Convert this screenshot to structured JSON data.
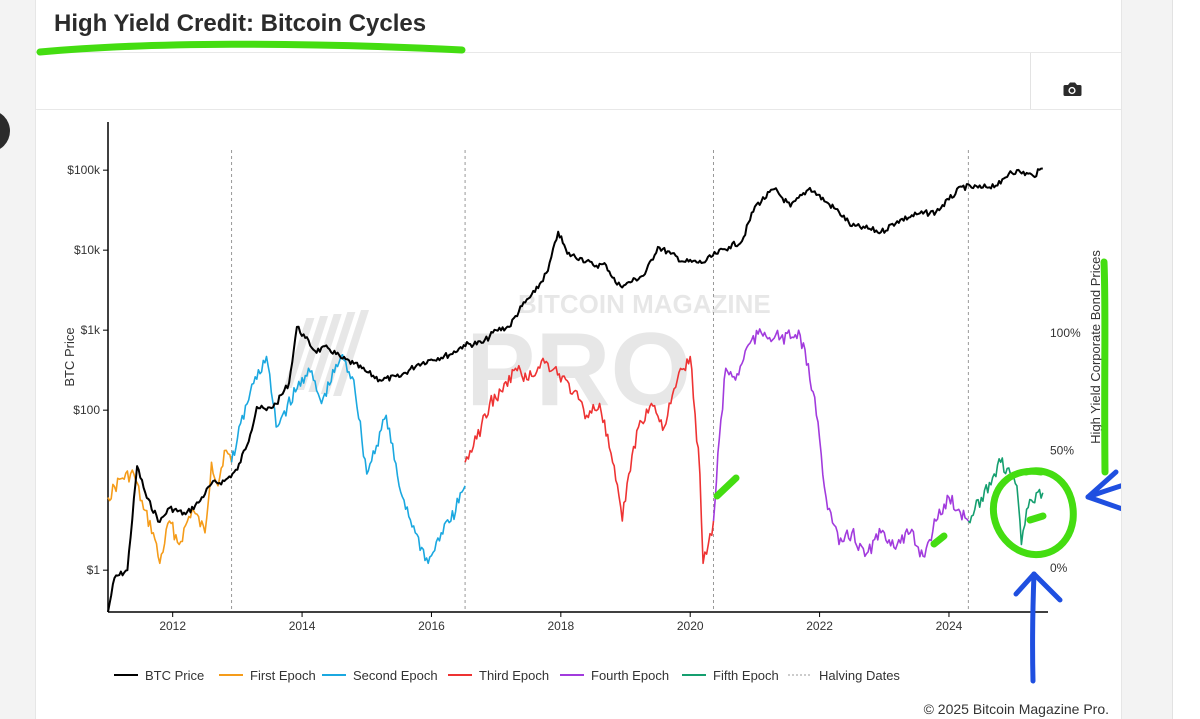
{
  "header": {
    "title": "High Yield Credit: Bitcoin Cycles"
  },
  "toolbar": {
    "camera_icon": "camera-icon"
  },
  "copyright": "© 2025 Bitcoin Magazine Pro.",
  "watermark": {
    "top": "BITCOIN MAGAZINE",
    "main": "PRO"
  },
  "colors": {
    "btc": "#000000",
    "first": "#f59c1a",
    "second": "#1ba8e0",
    "third": "#ee3333",
    "fourth": "#a23bdd",
    "fifth": "#159f6f",
    "halving": "#999999",
    "annotation_green": "#44dd11",
    "annotation_blue": "#1f4fe0"
  },
  "chart_data": {
    "type": "line",
    "x_range": [
      2011.0,
      2025.5
    ],
    "x_ticks": [
      2012,
      2014,
      2016,
      2018,
      2020,
      2022,
      2024
    ],
    "x_tick_labels": [
      "2012",
      "2014",
      "2016",
      "2018",
      "2020",
      "2022",
      "2024"
    ],
    "y_left": {
      "label": "BTC Price",
      "scale": "log",
      "range": [
        0.3,
        400000
      ],
      "ticks": [
        1,
        100,
        1000,
        10000,
        100000
      ],
      "tick_labels": [
        "$1",
        "$100",
        "$1k",
        "$10k",
        "$100k"
      ]
    },
    "y_right": {
      "label": "High Yield Corporate Bond Prices",
      "range": [
        0,
        120
      ],
      "ticks": [
        0,
        50,
        100
      ],
      "tick_labels": [
        "0%",
        "50%",
        "100%"
      ]
    },
    "halving_dates": [
      2012.91,
      2016.52,
      2020.36,
      2024.3
    ],
    "btc_series": {
      "name": "BTC Price",
      "x": [
        2011.0,
        2011.1,
        2011.3,
        2011.45,
        2011.6,
        2011.8,
        2011.95,
        2012.2,
        2012.4,
        2012.6,
        2012.8,
        2013.0,
        2013.2,
        2013.3,
        2013.45,
        2013.6,
        2013.8,
        2013.92,
        2014.05,
        2014.2,
        2014.4,
        2014.6,
        2014.8,
        2015.0,
        2015.2,
        2015.5,
        2015.8,
        2016.0,
        2016.3,
        2016.5,
        2016.8,
        2017.0,
        2017.2,
        2017.4,
        2017.6,
        2017.8,
        2017.96,
        2018.1,
        2018.3,
        2018.5,
        2018.7,
        2018.87,
        2019.0,
        2019.3,
        2019.5,
        2019.7,
        2019.9,
        2020.2,
        2020.4,
        2020.6,
        2020.8,
        2021.0,
        2021.3,
        2021.55,
        2021.85,
        2022.1,
        2022.3,
        2022.5,
        2022.7,
        2022.95,
        2023.2,
        2023.5,
        2023.8,
        2024.0,
        2024.2,
        2024.5,
        2024.8,
        2024.95,
        2025.1,
        2025.3,
        2025.45
      ],
      "values": [
        0.3,
        0.8,
        1.0,
        20,
        8,
        4,
        6,
        5,
        7,
        12,
        13,
        18,
        50,
        110,
        100,
        120,
        220,
        1100,
        800,
        550,
        600,
        450,
        380,
        300,
        240,
        260,
        380,
        430,
        500,
        650,
        700,
        1000,
        1100,
        2000,
        3000,
        5500,
        17000,
        9000,
        8000,
        6500,
        6500,
        3700,
        3700,
        5000,
        11000,
        9000,
        7200,
        7000,
        9000,
        11000,
        13000,
        35000,
        58000,
        35000,
        60000,
        40000,
        30000,
        20000,
        19000,
        16800,
        23000,
        28000,
        30000,
        43000,
        62000,
        60000,
        68000,
        97000,
        95000,
        85000,
        105000
      ]
    },
    "hy_series": [
      {
        "name": "First Epoch",
        "x": [
          2011.0,
          2011.2,
          2011.4,
          2011.55,
          2011.7,
          2011.8,
          2011.95,
          2012.1,
          2012.3,
          2012.5,
          2012.6,
          2012.7,
          2012.8,
          2012.91
        ],
        "values": [
          30,
          38,
          40,
          25,
          15,
          2,
          20,
          10,
          25,
          15,
          45,
          35,
          50,
          45
        ]
      },
      {
        "name": "Second Epoch",
        "x": [
          2012.91,
          2013.0,
          2013.2,
          2013.45,
          2013.6,
          2013.9,
          2014.1,
          2014.3,
          2014.6,
          2014.8,
          2015.0,
          2015.3,
          2015.5,
          2015.75,
          2015.95,
          2016.15,
          2016.3,
          2016.52
        ],
        "values": [
          45,
          55,
          75,
          90,
          60,
          75,
          85,
          70,
          90,
          80,
          40,
          65,
          35,
          15,
          2,
          15,
          20,
          35
        ]
      },
      {
        "name": "Third Epoch",
        "x": [
          2016.52,
          2016.7,
          2016.9,
          2017.1,
          2017.3,
          2017.5,
          2017.7,
          2017.9,
          2018.2,
          2018.4,
          2018.6,
          2018.8,
          2018.95,
          2019.05,
          2019.2,
          2019.4,
          2019.6,
          2019.8,
          2020.0,
          2020.15,
          2020.2,
          2020.28,
          2020.36
        ],
        "values": [
          45,
          55,
          70,
          75,
          85,
          80,
          88,
          85,
          75,
          65,
          70,
          45,
          20,
          40,
          60,
          70,
          60,
          80,
          90,
          40,
          2,
          10,
          20
        ]
      },
      {
        "name": "Fourth Epoch",
        "x": [
          2020.36,
          2020.45,
          2020.55,
          2020.7,
          2020.9,
          2021.1,
          2021.4,
          2021.7,
          2021.9,
          2022.0,
          2022.1,
          2022.3,
          2022.5,
          2022.7,
          2022.95,
          2023.2,
          2023.4,
          2023.6,
          2023.8,
          2024.0,
          2024.15,
          2024.3
        ],
        "values": [
          20,
          55,
          85,
          80,
          95,
          100,
          98,
          99,
          75,
          55,
          30,
          10,
          15,
          5,
          15,
          10,
          15,
          5,
          20,
          30,
          25,
          20
        ]
      },
      {
        "name": "Fifth Epoch",
        "x": [
          2024.3,
          2024.4,
          2024.5,
          2024.7,
          2024.8,
          2024.95,
          2025.05,
          2025.12,
          2025.2,
          2025.3,
          2025.45
        ],
        "values": [
          20,
          25,
          30,
          40,
          45,
          40,
          35,
          10,
          25,
          28,
          32
        ]
      }
    ],
    "legend": {
      "placement": "bottom",
      "entries": [
        {
          "name": "BTC Price",
          "key": "btc",
          "dashed": false
        },
        {
          "name": "First Epoch",
          "key": "first",
          "dashed": false
        },
        {
          "name": "Second Epoch",
          "key": "second",
          "dashed": false
        },
        {
          "name": "Third Epoch",
          "key": "third",
          "dashed": false
        },
        {
          "name": "Fourth Epoch",
          "key": "fourth",
          "dashed": false
        },
        {
          "name": "Fifth Epoch",
          "key": "fifth",
          "dashed": false
        },
        {
          "name": "Halving Dates",
          "key": "halving",
          "dashed": true
        }
      ]
    }
  }
}
